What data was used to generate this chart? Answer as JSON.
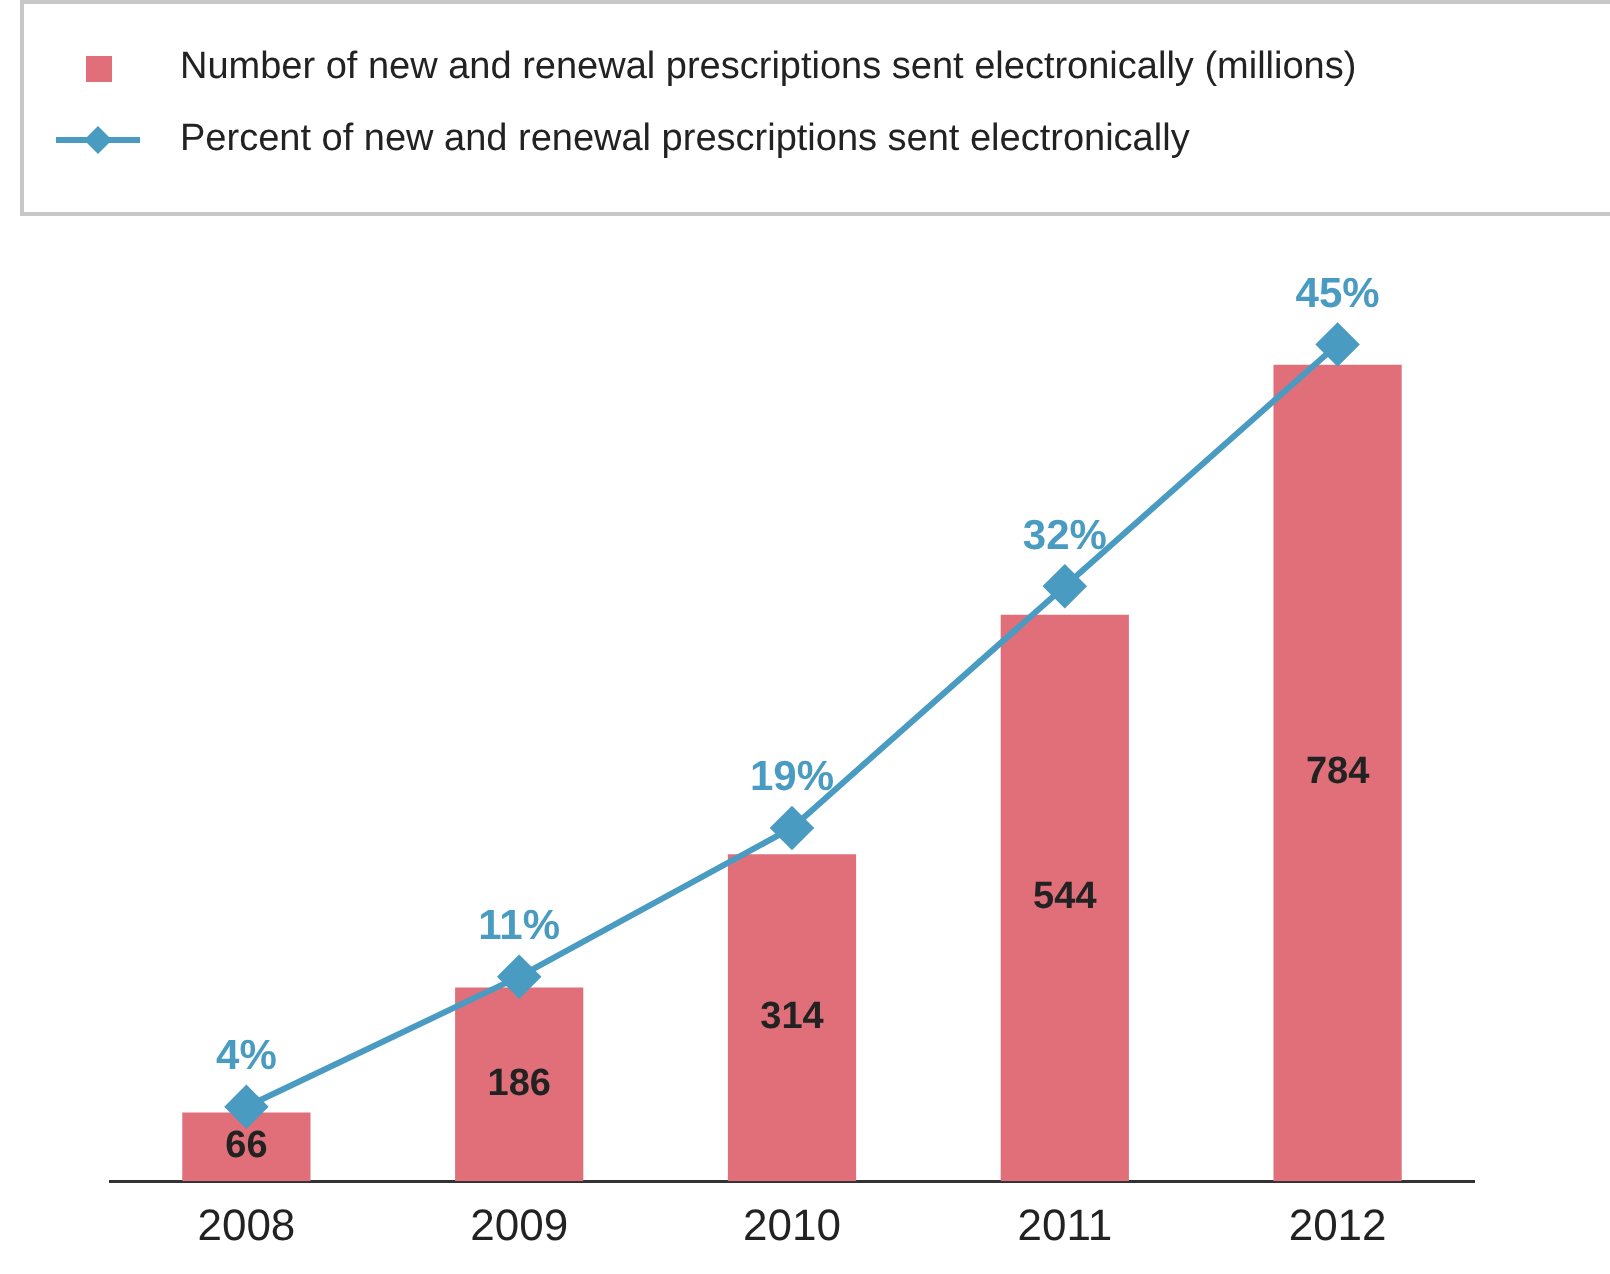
{
  "chart_data": {
    "type": "bar",
    "categories": [
      "2008",
      "2009",
      "2010",
      "2011",
      "2012"
    ],
    "series": [
      {
        "name": "Number of new and renewal prescriptions sent electronically (millions)",
        "color": "#e06f7a",
        "values": [
          66,
          186,
          314,
          544,
          784
        ]
      },
      {
        "name": "Percent of new and renewal prescriptions sent electronically",
        "type": "line",
        "axis": "y2",
        "color": "#4a9bc2",
        "values": [
          4,
          11,
          19,
          32,
          45
        ],
        "value_labels": [
          "4%",
          "11%",
          "19%",
          "32%",
          "45%"
        ]
      }
    ],
    "tick_labels": "x",
    "data_labels": true,
    "grid": false,
    "legend": "top",
    "marker": "diamond",
    "line_style": "solid"
  }
}
